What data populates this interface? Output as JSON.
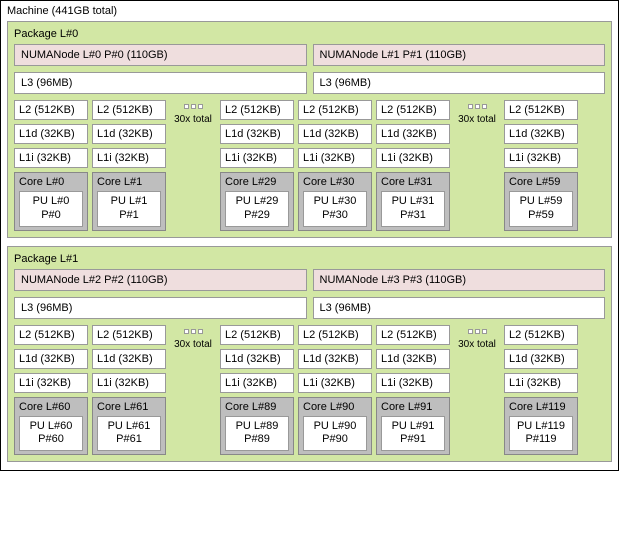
{
  "machine": {
    "title": "Machine (441GB total)"
  },
  "packages": [
    {
      "title": "Package L#0",
      "numa": [
        "NUMANode L#0 P#0 (110GB)",
        "NUMANode L#1 P#1 (110GB)"
      ],
      "l3": [
        "L3 (96MB)",
        "L3 (96MB)"
      ],
      "sep": "30x total",
      "cores": [
        {
          "l2": "L2 (512KB)",
          "l1d": "L1d (32KB)",
          "l1i": "L1i (32KB)",
          "core": "Core L#0",
          "pu1": "PU L#0",
          "pu2": "P#0"
        },
        {
          "l2": "L2 (512KB)",
          "l1d": "L1d (32KB)",
          "l1i": "L1i (32KB)",
          "core": "Core L#1",
          "pu1": "PU L#1",
          "pu2": "P#1"
        },
        {
          "l2": "L2 (512KB)",
          "l1d": "L1d (32KB)",
          "l1i": "L1i (32KB)",
          "core": "Core L#29",
          "pu1": "PU L#29",
          "pu2": "P#29"
        },
        {
          "l2": "L2 (512KB)",
          "l1d": "L1d (32KB)",
          "l1i": "L1i (32KB)",
          "core": "Core L#30",
          "pu1": "PU L#30",
          "pu2": "P#30"
        },
        {
          "l2": "L2 (512KB)",
          "l1d": "L1d (32KB)",
          "l1i": "L1i (32KB)",
          "core": "Core L#31",
          "pu1": "PU L#31",
          "pu2": "P#31"
        },
        {
          "l2": "L2 (512KB)",
          "l1d": "L1d (32KB)",
          "l1i": "L1i (32KB)",
          "core": "Core L#59",
          "pu1": "PU L#59",
          "pu2": "P#59"
        }
      ]
    },
    {
      "title": "Package L#1",
      "numa": [
        "NUMANode L#2 P#2 (110GB)",
        "NUMANode L#3 P#3 (110GB)"
      ],
      "l3": [
        "L3 (96MB)",
        "L3 (96MB)"
      ],
      "sep": "30x total",
      "cores": [
        {
          "l2": "L2 (512KB)",
          "l1d": "L1d (32KB)",
          "l1i": "L1i (32KB)",
          "core": "Core L#60",
          "pu1": "PU L#60",
          "pu2": "P#60"
        },
        {
          "l2": "L2 (512KB)",
          "l1d": "L1d (32KB)",
          "l1i": "L1i (32KB)",
          "core": "Core L#61",
          "pu1": "PU L#61",
          "pu2": "P#61"
        },
        {
          "l2": "L2 (512KB)",
          "l1d": "L1d (32KB)",
          "l1i": "L1i (32KB)",
          "core": "Core L#89",
          "pu1": "PU L#89",
          "pu2": "P#89"
        },
        {
          "l2": "L2 (512KB)",
          "l1d": "L1d (32KB)",
          "l1i": "L1i (32KB)",
          "core": "Core L#90",
          "pu1": "PU L#90",
          "pu2": "P#90"
        },
        {
          "l2": "L2 (512KB)",
          "l1d": "L1d (32KB)",
          "l1i": "L1i (32KB)",
          "core": "Core L#91",
          "pu1": "PU L#91",
          "pu2": "P#91"
        },
        {
          "l2": "L2 (512KB)",
          "l1d": "L1d (32KB)",
          "l1i": "L1i (32KB)",
          "core": "Core L#119",
          "pu1": "PU L#119",
          "pu2": "P#119"
        }
      ]
    }
  ],
  "colors": {
    "package_bg": "#d2e7a4",
    "numa_bg": "#efdede",
    "core_bg": "#bebebe",
    "cache_bg": "#ffffff",
    "border": "#999999"
  }
}
